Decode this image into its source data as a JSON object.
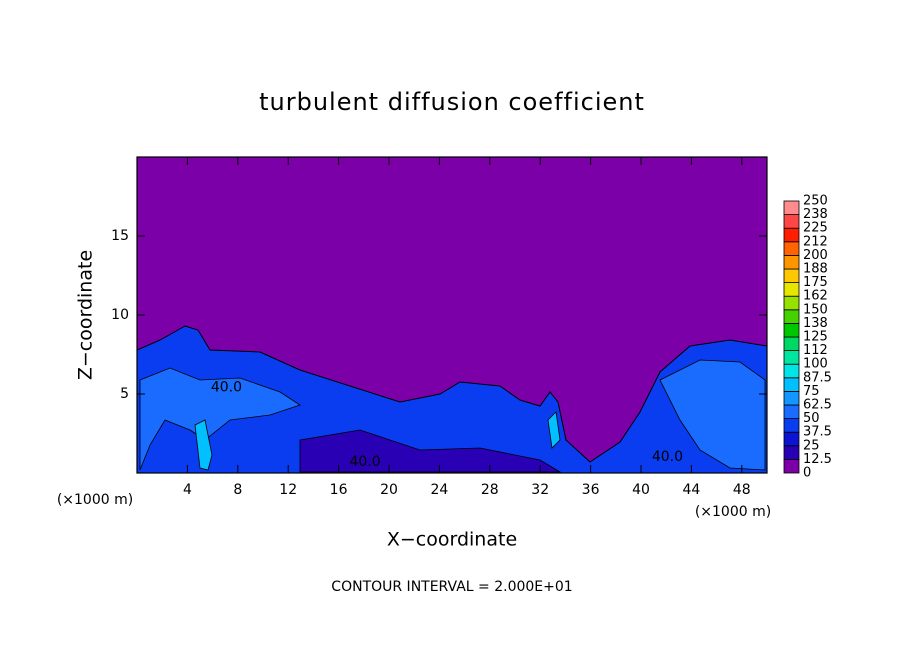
{
  "chart_data": {
    "type": "contour",
    "title": "turbulent diffusion coefficient",
    "x_label": "X−coordinate",
    "y_label": "Z−coordinate",
    "x_unit": "(×1000 m)",
    "y_unit": "(×1000 m)",
    "footer": "CONTOUR INTERVAL = 2.000E+01",
    "xlim": [
      0,
      50
    ],
    "ylim": [
      0,
      20
    ],
    "xticks": [
      4,
      8,
      12,
      16,
      20,
      24,
      28,
      32,
      36,
      40,
      44,
      48
    ],
    "yticks": [
      5,
      10,
      15
    ],
    "annotations": [
      {
        "text": "40.0",
        "x": 7.1,
        "y": 5.4
      },
      {
        "text": "40.0",
        "x": 18.1,
        "y": 0.7
      },
      {
        "text": "40.0",
        "x": 42.1,
        "y": 1.0
      }
    ],
    "colorbar": {
      "levels": [
        0,
        12.5,
        25,
        37.5,
        50,
        62.5,
        75,
        87.5,
        100,
        112,
        125,
        138,
        150,
        162,
        175,
        188,
        200,
        212,
        225,
        238,
        250
      ],
      "colors": [
        "#7b00a8",
        "#2a00b4",
        "#0a14d2",
        "#0a3cf0",
        "#1a6cff",
        "#1496ff",
        "#00c0ff",
        "#00e6e6",
        "#00e6a0",
        "#00d864",
        "#00c800",
        "#46d200",
        "#96e100",
        "#e6e600",
        "#ffc800",
        "#ff9600",
        "#ff6400",
        "#ff1e00",
        "#ff4646",
        "#ff8c8c"
      ]
    }
  }
}
